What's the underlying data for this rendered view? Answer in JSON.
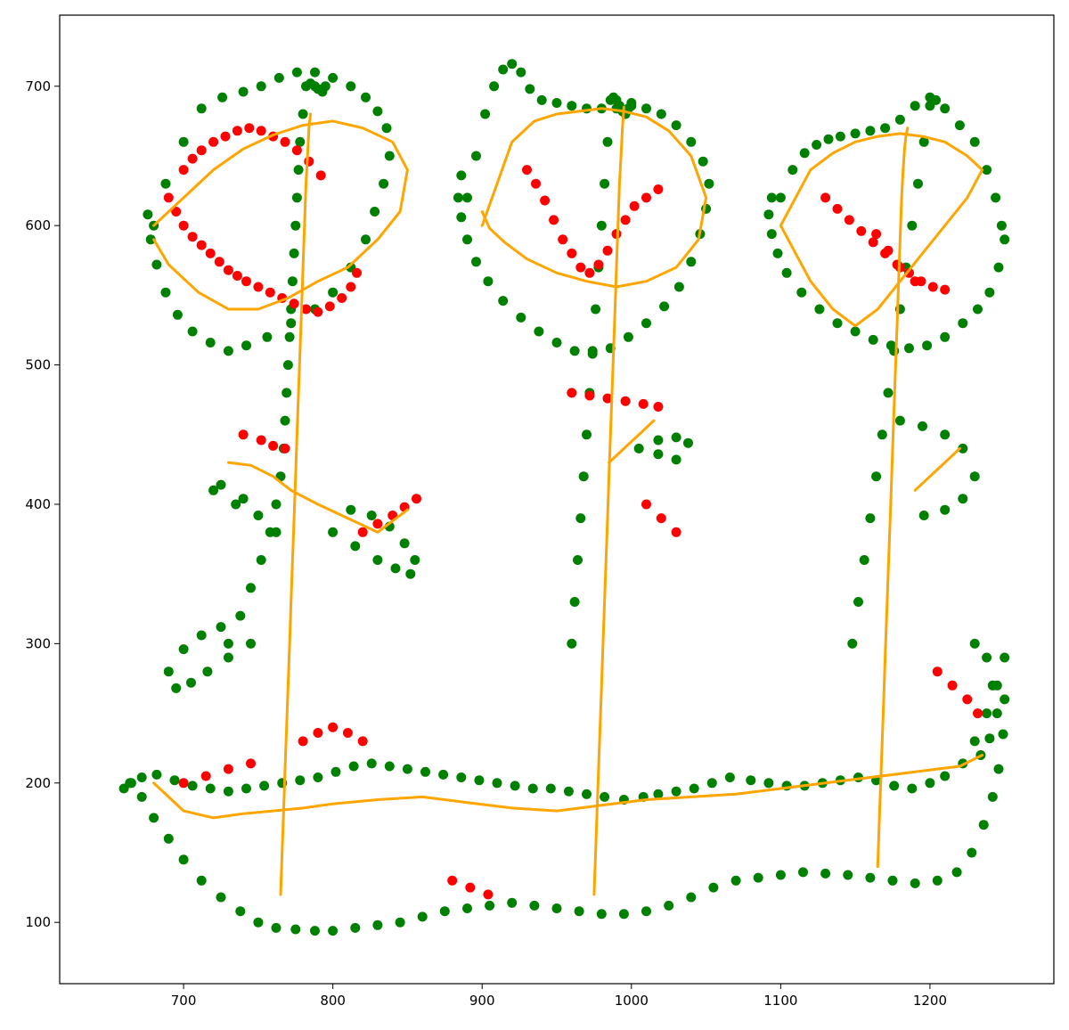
{
  "chart_data": {
    "type": "scatter",
    "title": "",
    "xlabel": "",
    "ylabel": "",
    "xlim": [
      617,
      1283
    ],
    "ylim": [
      56,
      751
    ],
    "xticks": [
      700,
      800,
      900,
      1000,
      1100,
      1200
    ],
    "yticks": [
      100,
      200,
      300,
      400,
      500,
      600,
      700
    ],
    "grid": false,
    "legend": "none",
    "colors": {
      "green": "#008000",
      "red": "#ff0000",
      "orange": "#ffa500",
      "axes": "#000000",
      "background": "#ffffff"
    },
    "series": [
      {
        "role": "scatter-green",
        "color": "#008000",
        "x": [
          665,
          672,
          680,
          690,
          700,
          712,
          725,
          738,
          750,
          762,
          775,
          788,
          800,
          815,
          830,
          845,
          860,
          875,
          890,
          905,
          920,
          935,
          950,
          965,
          980,
          995,
          1010,
          1025,
          1040,
          1055,
          1070,
          1085,
          1100,
          1115,
          1130,
          1145,
          1160,
          1175,
          1190,
          1205,
          1218,
          1228,
          1236,
          1242,
          1246,
          1249,
          1250,
          1250,
          1245,
          1238,
          1230,
          1222,
          1210,
          1200,
          1188,
          1176,
          1164,
          1152,
          1140,
          1128,
          1116,
          1104,
          1092,
          1080,
          1066,
          1054,
          1042,
          1030,
          1018,
          1008,
          995,
          982,
          970,
          958,
          946,
          934,
          922,
          910,
          898,
          886,
          874,
          862,
          850,
          838,
          826,
          814,
          802,
          790,
          778,
          766,
          754,
          742,
          730,
          718,
          706,
          694,
          682,
          672,
          664,
          660,
          730,
          738,
          745,
          752,
          758,
          762,
          765,
          767,
          768,
          769,
          770,
          771,
          772,
          773,
          774,
          775,
          776,
          777,
          778,
          780,
          782,
          785,
          788,
          790,
          793,
          795,
          960,
          962,
          964,
          966,
          968,
          970,
          972,
          974,
          976,
          978,
          980,
          982,
          984,
          986,
          988,
          990,
          992,
          994,
          996,
          998,
          1000,
          1148,
          1152,
          1156,
          1160,
          1164,
          1168,
          1172,
          1176,
          1180,
          1184,
          1188,
          1192,
          1196,
          1200,
          1204,
          680,
          688,
          700,
          712,
          726,
          740,
          752,
          764,
          776,
          788,
          800,
          812,
          822,
          830,
          836,
          838,
          834,
          828,
          822,
          812,
          800,
          788,
          772,
          756,
          742,
          730,
          718,
          706,
          696,
          688,
          682,
          678,
          676,
          890,
          896,
          902,
          908,
          914,
          920,
          926,
          932,
          940,
          950,
          960,
          970,
          980,
          990,
          1000,
          1010,
          1020,
          1030,
          1040,
          1048,
          1052,
          1050,
          1046,
          1040,
          1032,
          1022,
          1010,
          998,
          986,
          974,
          962,
          950,
          938,
          926,
          914,
          904,
          896,
          890,
          886,
          884,
          886,
          1100,
          1108,
          1116,
          1124,
          1132,
          1140,
          1150,
          1160,
          1170,
          1180,
          1190,
          1200,
          1210,
          1220,
          1230,
          1238,
          1244,
          1248,
          1250,
          1246,
          1240,
          1232,
          1222,
          1210,
          1198,
          1186,
          1174,
          1162,
          1150,
          1138,
          1126,
          1114,
          1104,
          1098,
          1094,
          1092,
          1094,
          800,
          815,
          830,
          842,
          852,
          855,
          848,
          838,
          826,
          812,
          1005,
          1018,
          1030,
          1038,
          1030,
          1018,
          1180,
          1195,
          1210,
          1222,
          1230,
          1222,
          1210,
          1196,
          720,
          735,
          750,
          762,
          740,
          725,
          745,
          730,
          716,
          705,
          695,
          690,
          700,
          712,
          725,
          1230,
          1238,
          1242,
          1245,
          1240,
          1234
        ],
        "y": [
          200,
          190,
          175,
          160,
          145,
          130,
          118,
          108,
          100,
          96,
          95,
          94,
          94,
          96,
          98,
          100,
          104,
          108,
          110,
          112,
          114,
          112,
          110,
          108,
          106,
          106,
          108,
          112,
          118,
          125,
          130,
          132,
          134,
          136,
          135,
          134,
          132,
          130,
          128,
          130,
          136,
          150,
          170,
          190,
          210,
          235,
          260,
          290,
          270,
          250,
          230,
          214,
          205,
          200,
          196,
          198,
          202,
          204,
          202,
          200,
          198,
          198,
          200,
          202,
          204,
          200,
          196,
          194,
          192,
          190,
          188,
          190,
          192,
          194,
          196,
          196,
          198,
          200,
          202,
          204,
          206,
          208,
          210,
          212,
          214,
          212,
          208,
          204,
          202,
          200,
          198,
          196,
          194,
          196,
          198,
          202,
          206,
          204,
          200,
          196,
          300,
          320,
          340,
          360,
          380,
          400,
          420,
          440,
          460,
          480,
          500,
          520,
          540,
          560,
          580,
          600,
          620,
          640,
          660,
          680,
          700,
          702,
          700,
          698,
          696,
          700,
          300,
          330,
          360,
          390,
          420,
          450,
          480,
          510,
          540,
          570,
          600,
          630,
          660,
          690,
          692,
          690,
          686,
          682,
          680,
          684,
          688,
          300,
          330,
          360,
          390,
          420,
          450,
          480,
          510,
          540,
          570,
          600,
          630,
          660,
          686,
          690,
          600,
          630,
          660,
          684,
          692,
          696,
          700,
          706,
          710,
          710,
          706,
          700,
          692,
          682,
          670,
          650,
          630,
          610,
          590,
          570,
          552,
          540,
          530,
          520,
          514,
          510,
          516,
          524,
          536,
          552,
          572,
          590,
          608,
          620,
          650,
          680,
          700,
          712,
          716,
          710,
          698,
          690,
          688,
          686,
          684,
          684,
          684,
          686,
          684,
          680,
          672,
          660,
          646,
          630,
          612,
          594,
          574,
          556,
          542,
          530,
          520,
          512,
          508,
          510,
          516,
          524,
          534,
          546,
          560,
          574,
          590,
          606,
          620,
          636,
          620,
          640,
          652,
          658,
          662,
          664,
          666,
          668,
          670,
          676,
          686,
          692,
          684,
          672,
          660,
          640,
          620,
          600,
          590,
          570,
          552,
          540,
          530,
          520,
          514,
          512,
          514,
          518,
          524,
          530,
          540,
          552,
          566,
          580,
          594,
          608,
          620,
          380,
          370,
          360,
          354,
          350,
          360,
          372,
          384,
          392,
          396,
          440,
          436,
          432,
          444,
          448,
          446,
          460,
          456,
          450,
          440,
          420,
          404,
          396,
          392,
          410,
          400,
          392,
          380,
          404,
          414,
          300,
          290,
          280,
          272,
          268,
          280,
          296,
          306,
          312,
          300,
          290,
          270,
          250,
          232,
          220
        ]
      },
      {
        "role": "scatter-red",
        "color": "#ff0000",
        "x": [
          690,
          695,
          700,
          706,
          712,
          718,
          724,
          730,
          736,
          742,
          750,
          758,
          766,
          774,
          782,
          790,
          798,
          806,
          812,
          816,
          700,
          706,
          712,
          720,
          728,
          736,
          744,
          752,
          760,
          768,
          776,
          784,
          792,
          930,
          936,
          942,
          948,
          954,
          960,
          966,
          972,
          978,
          984,
          990,
          996,
          1002,
          1010,
          1018,
          1130,
          1138,
          1146,
          1154,
          1162,
          1170,
          1178,
          1186,
          1194,
          1202,
          1210,
          1190,
          1180,
          1172,
          1164,
          740,
          752,
          760,
          768,
          820,
          830,
          840,
          848,
          856,
          700,
          715,
          730,
          745,
          960,
          972,
          984,
          996,
          1008,
          1018,
          1205,
          1215,
          1225,
          1232,
          1010,
          1020,
          1030,
          880,
          892,
          904,
          780,
          790,
          800,
          810,
          820
        ],
        "y": [
          620,
          610,
          600,
          592,
          586,
          580,
          574,
          568,
          564,
          560,
          556,
          552,
          548,
          544,
          540,
          538,
          542,
          548,
          556,
          566,
          640,
          648,
          654,
          660,
          664,
          668,
          670,
          668,
          664,
          660,
          654,
          646,
          636,
          640,
          630,
          618,
          604,
          590,
          580,
          570,
          566,
          572,
          582,
          594,
          604,
          614,
          620,
          626,
          620,
          612,
          604,
          596,
          588,
          580,
          572,
          566,
          560,
          556,
          554,
          560,
          570,
          582,
          594,
          450,
          446,
          442,
          440,
          380,
          386,
          392,
          398,
          404,
          200,
          205,
          210,
          214,
          480,
          478,
          476,
          474,
          472,
          470,
          280,
          270,
          260,
          250,
          400,
          390,
          380,
          130,
          125,
          120,
          230,
          236,
          240,
          236,
          230
        ]
      },
      {
        "role": "line-orange",
        "color": "#ffa500",
        "x": [
          765,
          766,
          767,
          768,
          769,
          770,
          771,
          772,
          773,
          774,
          775,
          776,
          777,
          778,
          779,
          780,
          781,
          782,
          783,
          784,
          785,
          975,
          976,
          977,
          978,
          979,
          980,
          981,
          982,
          983,
          984,
          985,
          986,
          987,
          988,
          989,
          990,
          991,
          992,
          993,
          994,
          995,
          1165,
          1166,
          1167,
          1168,
          1169,
          1170,
          1171,
          1172,
          1173,
          1174,
          1175,
          1176,
          1177,
          1178,
          1179,
          1180,
          1181,
          1182,
          1183,
          1184,
          1185,
          680,
          690,
          700,
          720,
          740,
          760,
          780,
          800,
          830,
          860,
          890,
          920,
          950,
          980,
          1010,
          1040,
          1070,
          1100,
          1130,
          1160,
          1190,
          1220,
          1235,
          680,
          700,
          720,
          740,
          760,
          780,
          800,
          820,
          840,
          850,
          845,
          830,
          810,
          790,
          770,
          750,
          730,
          710,
          690,
          680,
          900,
          910,
          920,
          935,
          950,
          965,
          980,
          995,
          1010,
          1025,
          1040,
          1050,
          1045,
          1030,
          1010,
          990,
          970,
          950,
          930,
          915,
          905,
          900,
          1100,
          1110,
          1120,
          1135,
          1150,
          1165,
          1180,
          1195,
          1210,
          1225,
          1235,
          1225,
          1210,
          1195,
          1180,
          1165,
          1150,
          1135,
          1120,
          1110,
          1100,
          730,
          745,
          760,
          772,
          790,
          810,
          830,
          850,
          1015,
          1005,
          995,
          985,
          1220,
          1210,
          1200,
          1190
        ],
        "y": [
          120,
          150,
          180,
          210,
          240,
          270,
          300,
          330,
          360,
          390,
          420,
          450,
          480,
          510,
          540,
          570,
          600,
          630,
          650,
          670,
          680,
          120,
          150,
          180,
          210,
          240,
          270,
          300,
          330,
          360,
          390,
          420,
          450,
          480,
          510,
          540,
          570,
          600,
          630,
          650,
          670,
          685,
          140,
          170,
          200,
          230,
          260,
          290,
          320,
          350,
          380,
          410,
          440,
          470,
          500,
          530,
          560,
          590,
          620,
          640,
          655,
          665,
          670,
          200,
          190,
          180,
          175,
          178,
          180,
          182,
          185,
          188,
          190,
          186,
          182,
          180,
          184,
          188,
          190,
          192,
          196,
          200,
          204,
          208,
          212,
          220,
          600,
          620,
          640,
          655,
          665,
          672,
          675,
          670,
          660,
          640,
          610,
          590,
          570,
          560,
          548,
          540,
          540,
          552,
          572,
          590,
          600,
          630,
          660,
          675,
          680,
          682,
          684,
          682,
          678,
          668,
          650,
          620,
          590,
          570,
          560,
          556,
          560,
          566,
          576,
          588,
          598,
          610,
          600,
          620,
          640,
          652,
          660,
          664,
          666,
          664,
          660,
          650,
          640,
          620,
          600,
          580,
          560,
          540,
          528,
          540,
          560,
          580,
          600,
          430,
          428,
          420,
          410,
          400,
          390,
          380,
          396,
          460,
          450,
          440,
          430,
          440,
          430,
          420,
          410
        ]
      }
    ]
  }
}
